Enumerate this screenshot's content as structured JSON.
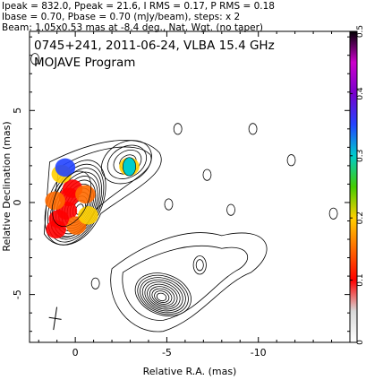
{
  "header": {
    "line1": "Ipeak = 832.0, Ppeak = 21.6, I RMS = 0.17, P RMS = 0.18",
    "line2": "Ibase = 0.70, Pbase = 0.70 (mJy/beam), steps: x 2",
    "line3": "Beam: 1.05x0.53 mas at -8.4 deg., Nat. Wgt. (no taper)"
  },
  "chart_data": {
    "type": "contour",
    "title": "0745+241, 2011-06-24, VLBA 15.4 GHz",
    "subtitle": "MOJAVE Program",
    "xlabel": "Relative R.A. (mas)",
    "ylabel": "Relative Declination (mas)",
    "xlim": [
      2.5,
      -15.0
    ],
    "ylim": [
      -7.6,
      9.3
    ],
    "xticks": [
      0,
      -5,
      -10
    ],
    "yticks": [
      5,
      0,
      -5
    ],
    "colorbar": {
      "range": [
        0,
        0.5
      ],
      "ticks": [
        0,
        0.1,
        0.2,
        0.3,
        0.4,
        0.5
      ],
      "stops": [
        "#ffffff",
        "#d8d8d8",
        "#ff0000",
        "#ff6a00",
        "#ffd000",
        "#44cc00",
        "#00cccc",
        "#2244ff",
        "#7700cc",
        "#cc00cc",
        "#000000"
      ]
    },
    "core": {
      "x": 0.0,
      "y": 0.0
    },
    "beam": {
      "major": 1.05,
      "minor": 0.53,
      "pa_deg": -8.4
    },
    "components": [
      {
        "name": "core",
        "x": 0.0,
        "y": 0.0,
        "levels": 12
      },
      {
        "name": "inner-jet",
        "x": -2.8,
        "y": 2.2,
        "levels": 4
      },
      {
        "name": "lower-jet",
        "x": -4.8,
        "y": -5.0,
        "levels": 10
      }
    ],
    "islands": [
      {
        "x": -5.6,
        "y": 4.0
      },
      {
        "x": -9.7,
        "y": 4.0
      },
      {
        "x": -11.8,
        "y": 2.3
      },
      {
        "x": -7.2,
        "y": 1.5
      },
      {
        "x": -5.1,
        "y": -0.1
      },
      {
        "x": -8.5,
        "y": -0.4
      },
      {
        "x": -14.1,
        "y": -0.6
      },
      {
        "x": -1.1,
        "y": -4.4
      },
      {
        "x": 2.2,
        "y": 7.8
      }
    ],
    "pol_colored": [
      {
        "x": 0.15,
        "y": 0.75,
        "v": 0.12
      },
      {
        "x": 0.35,
        "y": 0.3,
        "v": 0.08
      },
      {
        "x": 0.45,
        "y": -0.45,
        "v": 0.11
      },
      {
        "x": -0.05,
        "y": -1.25,
        "v": 0.13
      },
      {
        "x": 0.75,
        "y": 1.55,
        "v": 0.22
      },
      {
        "x": 0.55,
        "y": 1.9,
        "v": 0.36
      },
      {
        "x": 1.1,
        "y": 0.1,
        "v": 0.14
      },
      {
        "x": 0.9,
        "y": -0.9,
        "v": 0.08
      },
      {
        "x": -0.7,
        "y": -0.7,
        "v": 0.2
      },
      {
        "x": -2.95,
        "y": 1.95,
        "v": 0.2
      },
      {
        "x": 1.05,
        "y": -1.45,
        "v": 0.1
      },
      {
        "x": -0.55,
        "y": 0.45,
        "v": 0.16
      }
    ]
  }
}
